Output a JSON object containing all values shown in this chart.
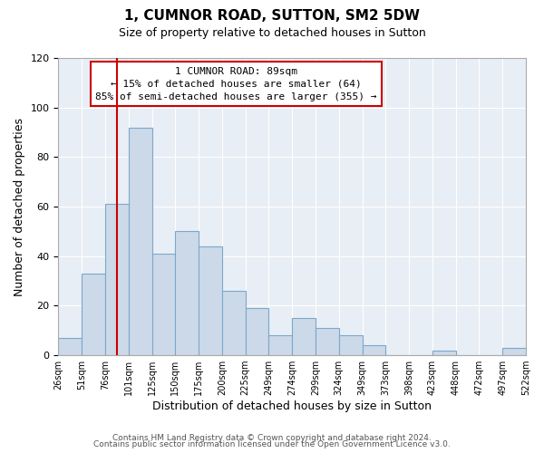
{
  "title": "1, CUMNOR ROAD, SUTTON, SM2 5DW",
  "subtitle": "Size of property relative to detached houses in Sutton",
  "xlabel": "Distribution of detached houses by size in Sutton",
  "ylabel": "Number of detached properties",
  "footer_lines": [
    "Contains HM Land Registry data © Crown copyright and database right 2024.",
    "Contains public sector information licensed under the Open Government Licence v3.0."
  ],
  "bin_labels": [
    "26sqm",
    "51sqm",
    "76sqm",
    "101sqm",
    "125sqm",
    "150sqm",
    "175sqm",
    "200sqm",
    "225sqm",
    "249sqm",
    "274sqm",
    "299sqm",
    "324sqm",
    "349sqm",
    "373sqm",
    "398sqm",
    "423sqm",
    "448sqm",
    "472sqm",
    "497sqm",
    "522sqm"
  ],
  "bar_heights": [
    7,
    33,
    61,
    92,
    41,
    50,
    44,
    26,
    19,
    8,
    15,
    11,
    8,
    4,
    0,
    0,
    2,
    0,
    0,
    3
  ],
  "bar_color": "#ccd9e8",
  "bar_edge_color": "#7aa8cc",
  "vline_x_sqm": 89,
  "ylim": [
    0,
    120
  ],
  "yticks": [
    0,
    20,
    40,
    60,
    80,
    100,
    120
  ],
  "annotation_title": "1 CUMNOR ROAD: 89sqm",
  "annotation_line1": "← 15% of detached houses are smaller (64)",
  "annotation_line2": "85% of semi-detached houses are larger (355) →",
  "box_color": "#cc0000",
  "bg_color": "#e8eef5",
  "title_fontsize": 11,
  "subtitle_fontsize": 9
}
